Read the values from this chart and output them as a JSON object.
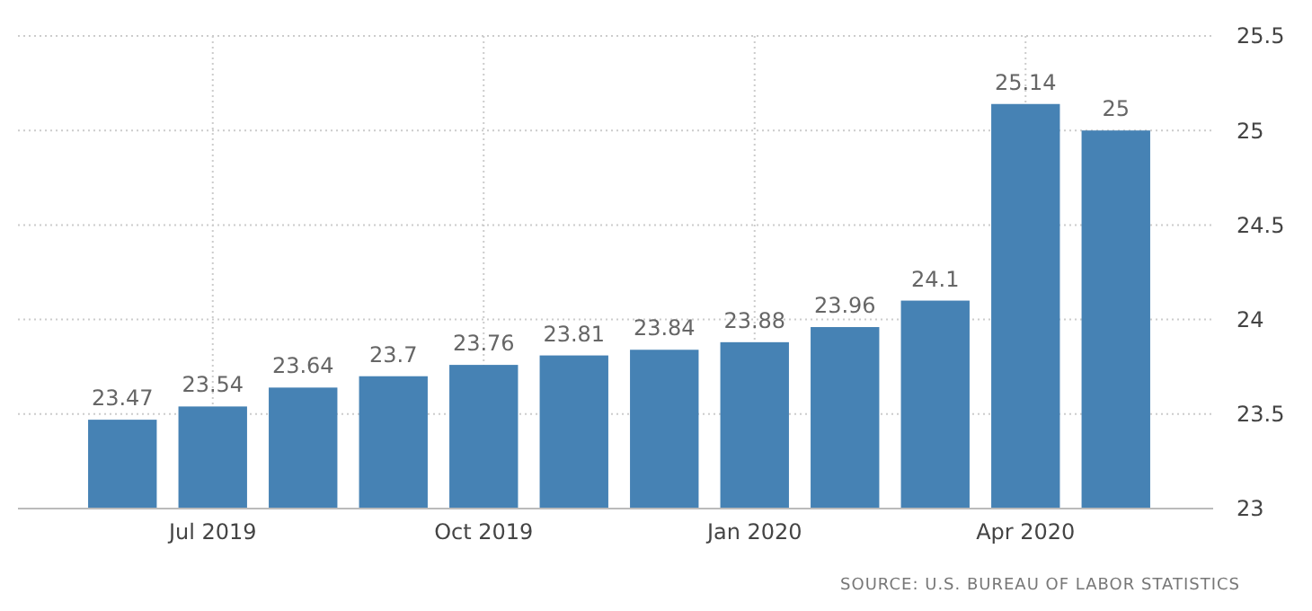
{
  "chart_data": {
    "type": "bar",
    "categories": [
      null,
      "Jul 2019",
      null,
      null,
      "Oct 2019",
      null,
      null,
      "Jan 2020",
      null,
      null,
      "Apr 2020",
      null
    ],
    "values": [
      23.47,
      23.54,
      23.64,
      23.7,
      23.76,
      23.81,
      23.84,
      23.88,
      23.96,
      24.1,
      25.14,
      25
    ],
    "color": "#4682b4",
    "ylim": [
      23,
      25.5
    ],
    "yticks": [
      23,
      23.5,
      24,
      24.5,
      25,
      25.5
    ],
    "grid": true,
    "data_labels": true,
    "annotations": [
      "SOURCE: U.S. BUREAU OF LABOR STATISTICS"
    ]
  }
}
